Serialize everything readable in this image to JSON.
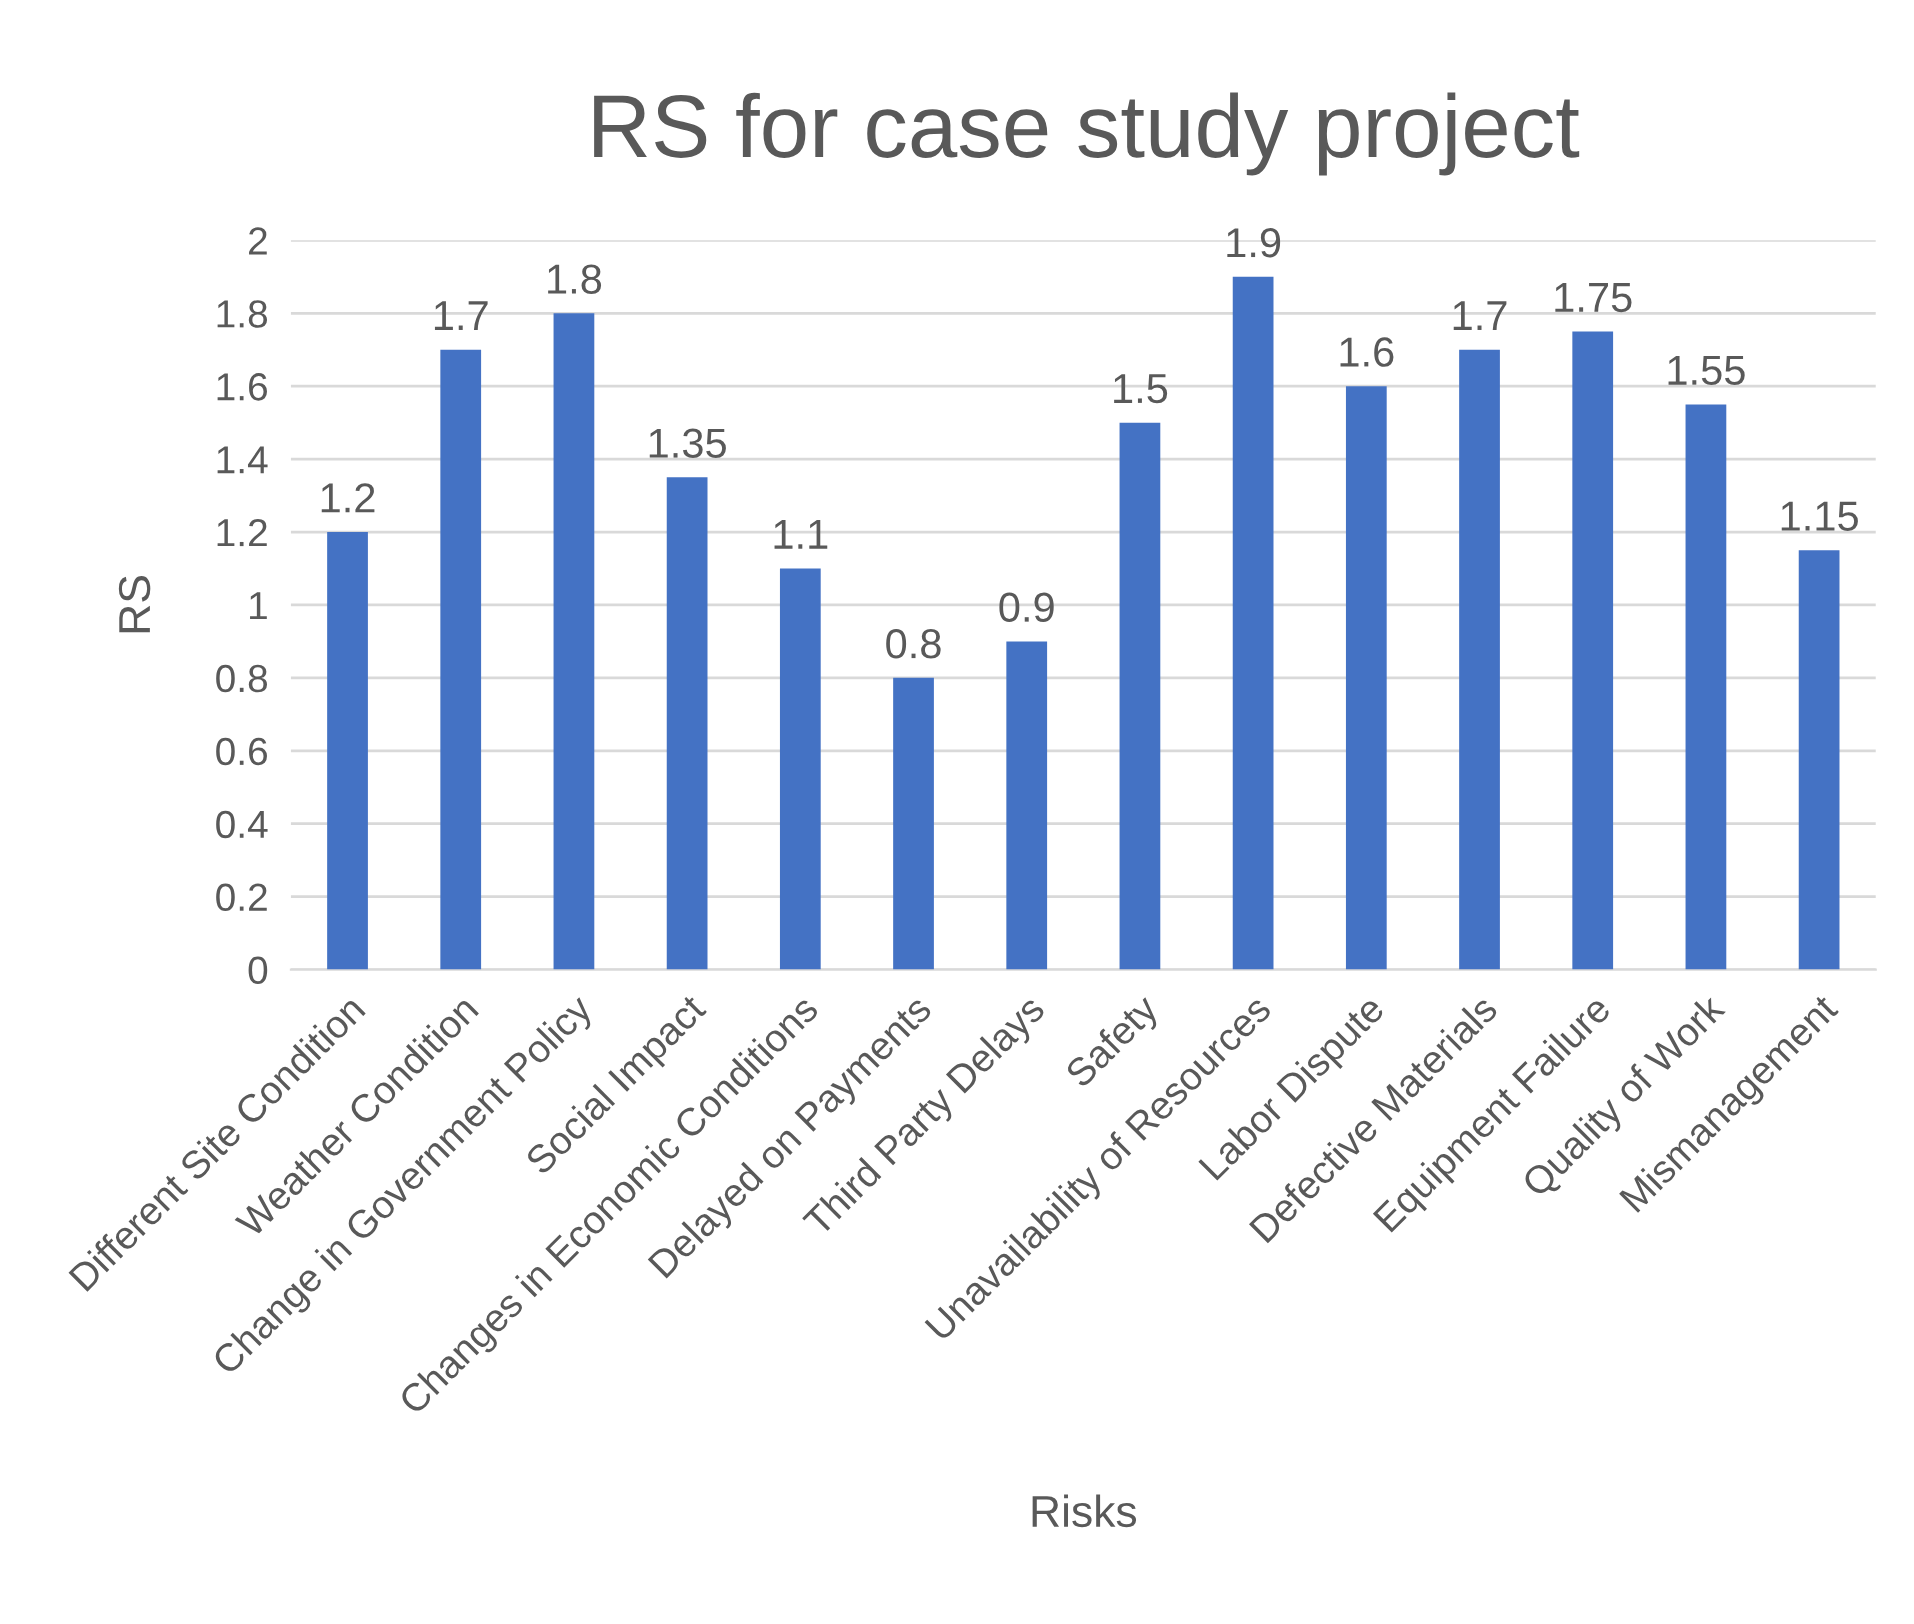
{
  "chart_data": {
    "type": "bar",
    "title": "RS for case study project",
    "xlabel": "Risks",
    "ylabel": "RS",
    "categories": [
      "Different Site Condition",
      "Weather Condition",
      "Change in Government Policy",
      "Social Impact",
      "Changes in Economic Conditions",
      "Delayed on Payments",
      "Third Party Delays",
      "Safety",
      "Unavailability of Resources",
      "Labor Dispute",
      "Defective Materials",
      "Equipment Failure",
      "Quality of Work",
      "Mismanagement"
    ],
    "values": [
      1.2,
      1.7,
      1.8,
      1.35,
      1.1,
      0.8,
      0.9,
      1.5,
      1.9,
      1.6,
      1.7,
      1.75,
      1.55,
      1.15
    ],
    "color": "#4472c4",
    "ylim": [
      0,
      2
    ],
    "yticks": [
      0,
      {
        "value": 0.2,
        "label": "0.2"
      },
      {
        "value": 0.4,
        "label": "0.4"
      },
      {
        "value": 0.6,
        "label": "0.6"
      },
      {
        "value": 0.8,
        "label": "0.8"
      },
      1,
      {
        "value": 1.2,
        "label": "1.2"
      },
      {
        "value": 1.4,
        "label": "1.4"
      },
      {
        "value": 1.6,
        "label": "1.6"
      },
      {
        "value": 1.8,
        "label": "1.8"
      },
      2
    ],
    "grid": "y",
    "data_labels": true,
    "legend": false
  }
}
